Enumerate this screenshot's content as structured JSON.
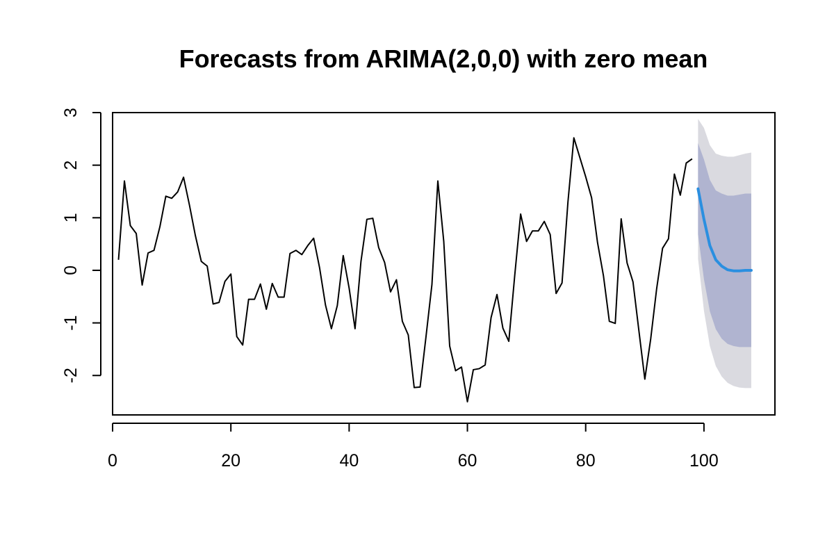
{
  "chart_data": {
    "type": "line",
    "title": "Forecasts from ARIMA(2,0,0) with zero mean",
    "xlabel": "",
    "ylabel": "",
    "xlim": [
      0,
      112
    ],
    "ylim": [
      -2.75,
      3
    ],
    "x_ticks": [
      0,
      20,
      40,
      60,
      80,
      100
    ],
    "y_ticks": [
      -2,
      -1,
      0,
      1,
      2,
      3
    ],
    "grid": false,
    "legend": "none",
    "colors": {
      "observed": "#000000",
      "forecast": "#2a8fe0",
      "band80": "#b0b4d0",
      "band95": "#dadae0"
    },
    "series": [
      {
        "values": [
          0.2,
          1.7,
          0.85,
          0.7,
          -0.28,
          0.33,
          0.38,
          0.83,
          1.41,
          1.37,
          1.49,
          1.77,
          1.24,
          0.66,
          0.17,
          0.08,
          -0.64,
          -0.61,
          -0.21,
          -0.07,
          -1.26,
          -1.42,
          -0.55,
          -0.55,
          -0.26,
          -0.74,
          -0.25,
          -0.51,
          -0.51,
          0.32,
          0.38,
          0.3,
          0.47,
          0.61,
          0.05,
          -0.66,
          -1.11,
          -0.67,
          0.28,
          -0.34,
          -1.11,
          0.17,
          0.97,
          0.99,
          0.43,
          0.15,
          -0.41,
          -0.18,
          -0.97,
          -1.23,
          -2.23,
          -2.22,
          -1.26,
          -0.27,
          1.7,
          0.55,
          -1.44,
          -1.91,
          -1.84,
          -2.5,
          -1.89,
          -1.87,
          -1.8,
          -0.9,
          -0.46,
          -1.1,
          -1.35,
          -0.1,
          1.07,
          0.55,
          0.75,
          0.75,
          0.93,
          0.68,
          -0.44,
          -0.24,
          1.3,
          2.52,
          2.15,
          1.78,
          1.38,
          0.53,
          -0.1,
          -0.97,
          -1.01,
          0.98,
          0.14,
          -0.22,
          -1.15,
          -2.07,
          -1.3,
          -0.35,
          0.42,
          0.6,
          1.83,
          1.43,
          2.04,
          2.12
        ]
      },
      {
        "x": [
          99,
          100,
          101,
          102,
          103,
          104,
          105,
          106,
          107,
          108
        ],
        "values": [
          1.55,
          0.97,
          0.47,
          0.2,
          0.08,
          0.01,
          -0.01,
          -0.01,
          0.0,
          0.0
        ],
        "lo80": [
          0.68,
          -0.17,
          -0.78,
          -1.12,
          -1.3,
          -1.4,
          -1.44,
          -1.46,
          -1.46,
          -1.46
        ],
        "hi80": [
          2.42,
          2.11,
          1.72,
          1.52,
          1.46,
          1.42,
          1.42,
          1.44,
          1.46,
          1.46
        ],
        "lo95": [
          0.22,
          -0.77,
          -1.44,
          -1.82,
          -2.02,
          -2.14,
          -2.2,
          -2.23,
          -2.24,
          -2.24
        ],
        "hi95": [
          2.88,
          2.71,
          2.38,
          2.22,
          2.18,
          2.16,
          2.16,
          2.19,
          2.22,
          2.24
        ]
      }
    ]
  }
}
